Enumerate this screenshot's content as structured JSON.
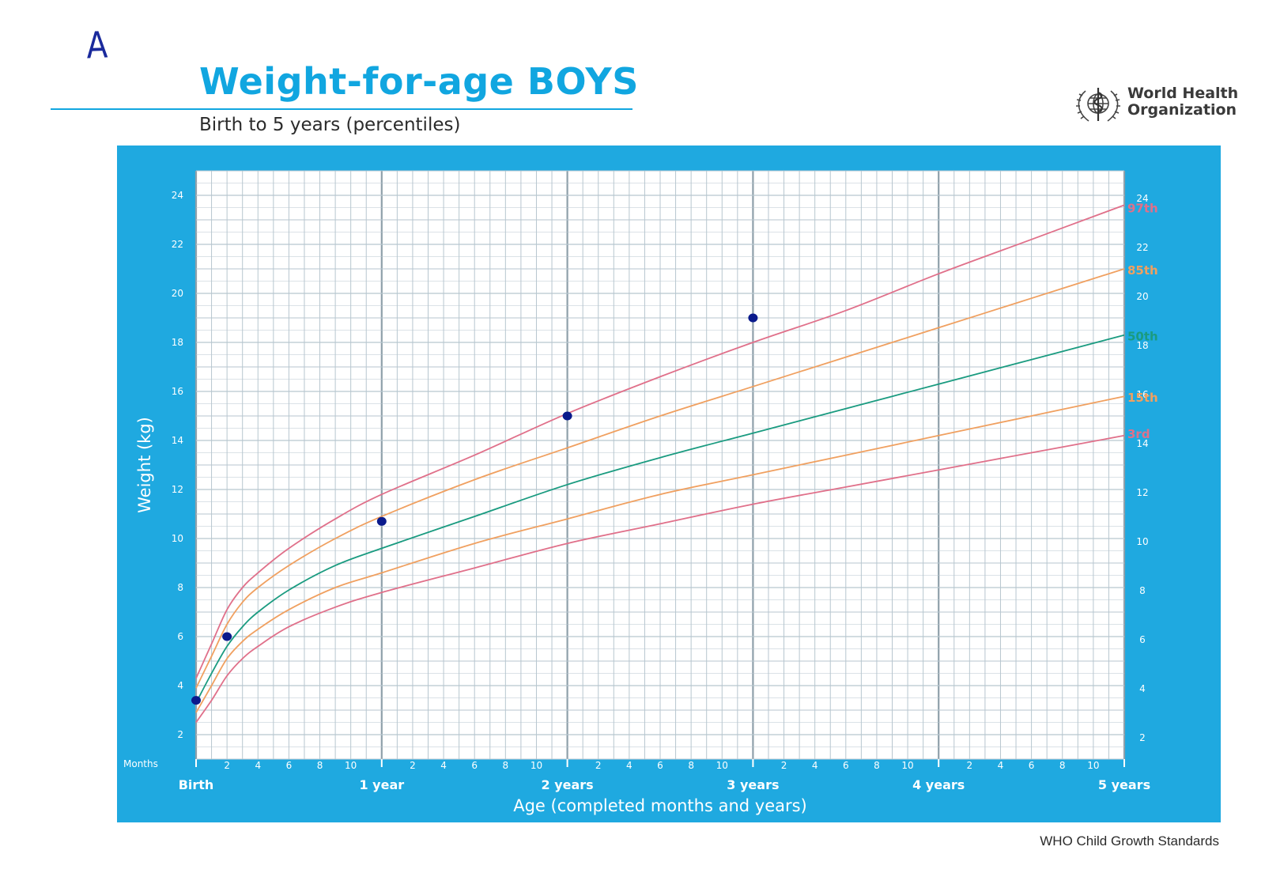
{
  "page": {
    "handwritten_label": "A",
    "title": "Weight-for-age BOYS",
    "subtitle": "Birth to 5 years (percentiles)",
    "organization_line1": "World Health",
    "organization_line2": "Organization",
    "footer": "WHO Child Growth Standards"
  },
  "colors": {
    "brand_blue": "#11a6e0",
    "panel_blue": "#1fa9e0",
    "p97_p3": "#e0708a",
    "p85_p15": "#f0a060",
    "p50": "#1a9b80",
    "marker": "#0a1a8c"
  },
  "icons": {
    "logo": "who-emblem-icon"
  },
  "chart_data": {
    "type": "line",
    "title": "Weight-for-age BOYS",
    "subtitle": "Birth to 5 years (percentiles)",
    "xlabel": "Age (completed months and years)",
    "ylabel": "Weight (kg)",
    "x_unit_label": "Months",
    "xlim": [
      0,
      60
    ],
    "ylim": [
      1,
      25
    ],
    "y_ticks": [
      2,
      4,
      6,
      8,
      10,
      12,
      14,
      16,
      18,
      20,
      22,
      24
    ],
    "x_month_ticks": [
      "2",
      "4",
      "6",
      "8",
      "10"
    ],
    "x_year_labels": [
      {
        "month": 0,
        "label": "Birth"
      },
      {
        "month": 12,
        "label": "1 year"
      },
      {
        "month": 24,
        "label": "2 years"
      },
      {
        "month": 36,
        "label": "3 years"
      },
      {
        "month": 48,
        "label": "4 years"
      },
      {
        "month": 60,
        "label": "5 years"
      }
    ],
    "grid": true,
    "x": [
      0,
      1,
      2,
      3,
      4,
      6,
      9,
      12,
      18,
      24,
      30,
      36,
      42,
      48,
      54,
      60
    ],
    "series": [
      {
        "name": "97th",
        "color": "#e0708a",
        "values": [
          4.3,
          5.7,
          7.1,
          8.0,
          8.6,
          9.6,
          10.8,
          11.8,
          13.4,
          15.1,
          16.6,
          18.0,
          19.3,
          20.8,
          22.2,
          23.6
        ]
      },
      {
        "name": "85th",
        "color": "#f0a060",
        "values": [
          3.9,
          5.2,
          6.5,
          7.4,
          8.0,
          8.9,
          10.0,
          10.9,
          12.4,
          13.7,
          15.0,
          16.2,
          17.4,
          18.6,
          19.8,
          21.0
        ]
      },
      {
        "name": "50th",
        "color": "#1a9b80",
        "values": [
          3.3,
          4.5,
          5.6,
          6.4,
          7.0,
          7.9,
          8.9,
          9.6,
          10.9,
          12.2,
          13.3,
          14.3,
          15.3,
          16.3,
          17.3,
          18.3
        ]
      },
      {
        "name": "15th",
        "color": "#f0a060",
        "values": [
          2.9,
          4.0,
          5.1,
          5.8,
          6.3,
          7.1,
          8.0,
          8.6,
          9.8,
          10.8,
          11.8,
          12.6,
          13.4,
          14.2,
          15.0,
          15.8
        ]
      },
      {
        "name": "3rd",
        "color": "#e0708a",
        "values": [
          2.5,
          3.4,
          4.4,
          5.1,
          5.6,
          6.4,
          7.2,
          7.8,
          8.8,
          9.8,
          10.6,
          11.4,
          12.1,
          12.8,
          13.5,
          14.2
        ]
      }
    ],
    "markers": [
      {
        "x": 0,
        "y": 3.4
      },
      {
        "x": 2,
        "y": 6.0
      },
      {
        "x": 12,
        "y": 10.7
      },
      {
        "x": 24,
        "y": 15.0
      },
      {
        "x": 36,
        "y": 19.0
      }
    ]
  }
}
